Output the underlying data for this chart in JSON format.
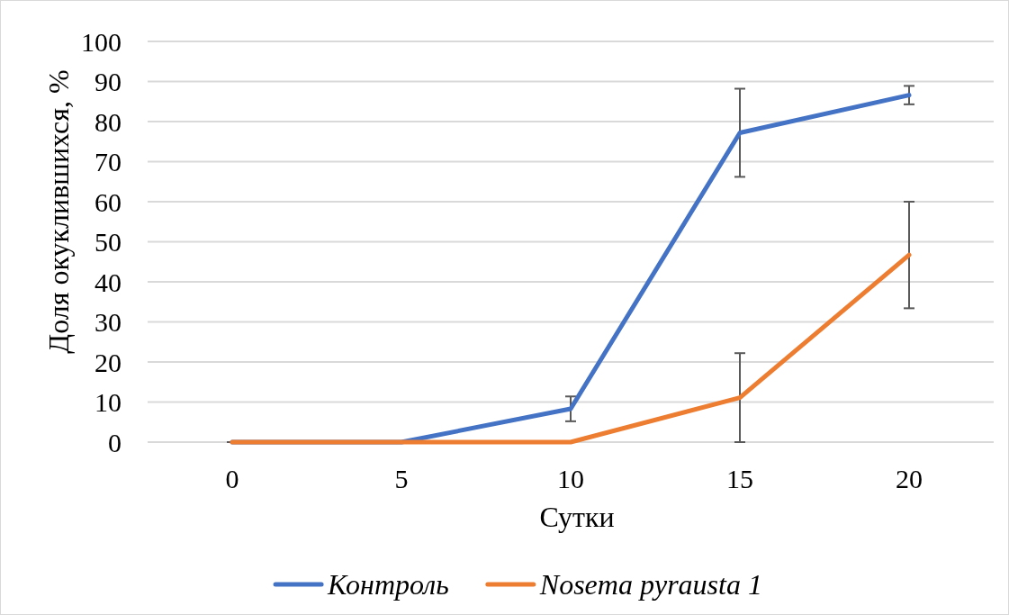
{
  "chart_data": {
    "type": "line",
    "xlabel": "Сутки",
    "ylabel": "Доля окуклившихся, %",
    "categories": [
      "0",
      "5",
      "10",
      "15",
      "20"
    ],
    "series": [
      {
        "name": "Контроль",
        "color": "#4472c4",
        "values": [
          0,
          0,
          8.3,
          77.2,
          86.6
        ],
        "errors": [
          0,
          0,
          3.1,
          11,
          2.3
        ]
      },
      {
        "name": "Nosema pyrausta 1",
        "color": "#ed7d31",
        "values": [
          0,
          0,
          0,
          11.1,
          46.7
        ],
        "errors": [
          0,
          0,
          0,
          11.1,
          13.3
        ]
      }
    ],
    "ylim": [
      0,
      100
    ],
    "yticks": [
      0,
      10,
      20,
      30,
      40,
      50,
      60,
      70,
      80,
      90,
      100
    ],
    "grid": "y",
    "legend": "bottom",
    "marker": "none",
    "line_style": "solid"
  }
}
